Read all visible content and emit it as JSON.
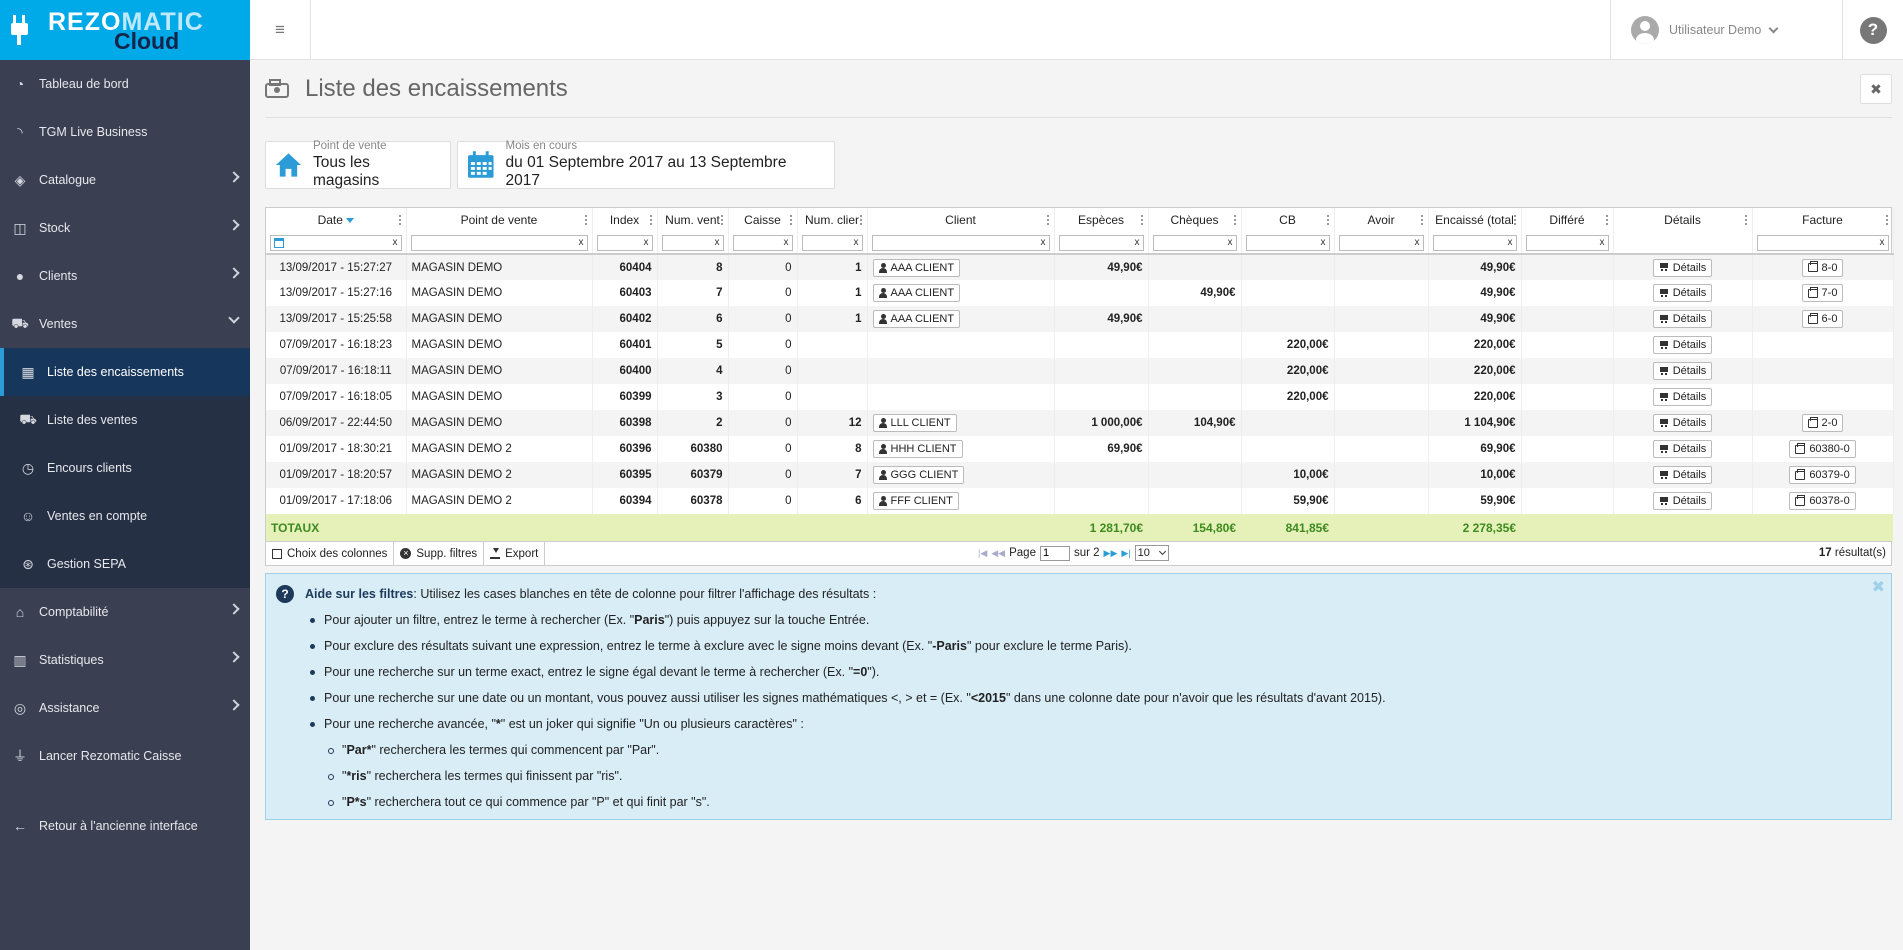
{
  "brand": {
    "name_a": "REZO",
    "name_b": "MATIC",
    "cloud": "Cloud"
  },
  "sidebar": {
    "items": [
      {
        "label": "Tableau de bord",
        "icon": "dashboard-icon"
      },
      {
        "label": "TGM Live Business",
        "icon": "rss-icon"
      },
      {
        "label": "Catalogue",
        "icon": "tags-icon"
      },
      {
        "label": "Stock",
        "icon": "cubes-icon"
      },
      {
        "label": "Clients",
        "icon": "users-icon"
      },
      {
        "label": "Ventes",
        "icon": "cart-icon"
      }
    ],
    "sub_items": [
      {
        "label": "Liste des encaissements",
        "icon": "cash-register-icon"
      },
      {
        "label": "Liste des ventes",
        "icon": "cart-icon"
      },
      {
        "label": "Encours clients",
        "icon": "clock-icon"
      },
      {
        "label": "Ventes en compte",
        "icon": "user-money-icon"
      },
      {
        "label": "Gestion SEPA",
        "icon": "sepa-icon"
      }
    ],
    "bottom_items": [
      {
        "label": "Comptabilité",
        "icon": "bank-icon"
      },
      {
        "label": "Statistiques",
        "icon": "bar-chart-icon"
      },
      {
        "label": "Assistance",
        "icon": "lifebuoy-icon"
      },
      {
        "label": "Lancer Rezomatic Caisse",
        "icon": "plug-icon"
      }
    ],
    "back_label": "Retour à l'ancienne interface"
  },
  "topbar": {
    "user_name": "Utilisateur Demo",
    "help_symbol": "?",
    "menu_symbol": "≡"
  },
  "page": {
    "title": "Liste des encaissements",
    "close_symbol": "✖"
  },
  "filters": {
    "store": {
      "label": "Point de vente",
      "value": "Tous les magasins"
    },
    "period": {
      "label": "Mois en cours",
      "value": "du 01 Septembre 2017 au 13 Septembre 2017"
    }
  },
  "table": {
    "columns": [
      "Date",
      "Point de vente",
      "Index",
      "Num. vent",
      "Caisse",
      "Num. clier",
      "Client",
      "Espèces",
      "Chèques",
      "CB",
      "Avoir",
      "Encaissé (total",
      "Différé",
      "Détails",
      "Facture"
    ],
    "filter_clear": "x",
    "details_label": "Détails",
    "rows": [
      {
        "date": "13/09/2017 - 15:27:27",
        "store": "MAGASIN DEMO",
        "index": "60404",
        "sale": "8",
        "caisse": "0",
        "client_num": "1",
        "client": "AAA CLIENT",
        "especes": "49,90€",
        "cheques": "",
        "cb": "",
        "avoir": "",
        "total": "49,90€",
        "differe": "",
        "facture": "8-0"
      },
      {
        "date": "13/09/2017 - 15:27:16",
        "store": "MAGASIN DEMO",
        "index": "60403",
        "sale": "7",
        "caisse": "0",
        "client_num": "1",
        "client": "AAA CLIENT",
        "especes": "",
        "cheques": "49,90€",
        "cb": "",
        "avoir": "",
        "total": "49,90€",
        "differe": "",
        "facture": "7-0"
      },
      {
        "date": "13/09/2017 - 15:25:58",
        "store": "MAGASIN DEMO",
        "index": "60402",
        "sale": "6",
        "caisse": "0",
        "client_num": "1",
        "client": "AAA CLIENT",
        "especes": "49,90€",
        "cheques": "",
        "cb": "",
        "avoir": "",
        "total": "49,90€",
        "differe": "",
        "facture": "6-0"
      },
      {
        "date": "07/09/2017 - 16:18:23",
        "store": "MAGASIN DEMO",
        "index": "60401",
        "sale": "5",
        "caisse": "0",
        "client_num": "",
        "client": "",
        "especes": "",
        "cheques": "",
        "cb": "220,00€",
        "avoir": "",
        "total": "220,00€",
        "differe": "",
        "facture": ""
      },
      {
        "date": "07/09/2017 - 16:18:11",
        "store": "MAGASIN DEMO",
        "index": "60400",
        "sale": "4",
        "caisse": "0",
        "client_num": "",
        "client": "",
        "especes": "",
        "cheques": "",
        "cb": "220,00€",
        "avoir": "",
        "total": "220,00€",
        "differe": "",
        "facture": ""
      },
      {
        "date": "07/09/2017 - 16:18:05",
        "store": "MAGASIN DEMO",
        "index": "60399",
        "sale": "3",
        "caisse": "0",
        "client_num": "",
        "client": "",
        "especes": "",
        "cheques": "",
        "cb": "220,00€",
        "avoir": "",
        "total": "220,00€",
        "differe": "",
        "facture": ""
      },
      {
        "date": "06/09/2017 - 22:44:50",
        "store": "MAGASIN DEMO",
        "index": "60398",
        "sale": "2",
        "caisse": "0",
        "client_num": "12",
        "client": "LLL CLIENT",
        "especes": "1 000,00€",
        "cheques": "104,90€",
        "cb": "",
        "avoir": "",
        "total": "1 104,90€",
        "differe": "",
        "facture": "2-0"
      },
      {
        "date": "01/09/2017 - 18:30:21",
        "store": "MAGASIN DEMO 2",
        "index": "60396",
        "sale": "60380",
        "caisse": "0",
        "client_num": "8",
        "client": "HHH CLIENT",
        "especes": "69,90€",
        "cheques": "",
        "cb": "",
        "avoir": "",
        "total": "69,90€",
        "differe": "",
        "facture": "60380-0"
      },
      {
        "date": "01/09/2017 - 18:20:57",
        "store": "MAGASIN DEMO 2",
        "index": "60395",
        "sale": "60379",
        "caisse": "0",
        "client_num": "7",
        "client": "GGG CLIENT",
        "especes": "",
        "cheques": "",
        "cb": "10,00€",
        "avoir": "",
        "total": "10,00€",
        "differe": "",
        "facture": "60379-0"
      },
      {
        "date": "01/09/2017 - 17:18:06",
        "store": "MAGASIN DEMO 2",
        "index": "60394",
        "sale": "60378",
        "caisse": "0",
        "client_num": "6",
        "client": "FFF CLIENT",
        "especes": "",
        "cheques": "",
        "cb": "59,90€",
        "avoir": "",
        "total": "59,90€",
        "differe": "",
        "facture": "60378-0"
      }
    ],
    "totals": {
      "label": "TOTAUX",
      "especes": "1 281,70€",
      "cheques": "154,80€",
      "cb": "841,85€",
      "total": "2 278,35€"
    }
  },
  "pager": {
    "columns_btn": "Choix des colonnes",
    "clear_btn": "Supp. filtres",
    "export_btn": "Export",
    "page_label": "Page",
    "page_value": "1",
    "of_label": "sur 2",
    "page_size": "10",
    "results_count": "17",
    "results_label": "résultat(s)"
  },
  "help": {
    "title": "Aide sur les filtres",
    "intro": " : Utilisez les cases blanches en tête de colonne pour filtrer l'affichage des résultats :",
    "items": [
      {
        "a": "Pour ajouter un filtre, entrez le terme à rechercher (Ex. \"",
        "b": "Paris",
        "c": "\") puis appuyez sur la touche Entrée."
      },
      {
        "a": "Pour exclure des résultats suivant une expression, entrez le terme à exclure avec le signe moins devant (Ex. \"",
        "b": "-Paris",
        "c": "\" pour exclure le terme Paris)."
      },
      {
        "a": "Pour une recherche sur un terme exact, entrez le signe égal devant le terme à rechercher (Ex. \"",
        "b": "=0",
        "c": "\")."
      },
      {
        "a": "Pour une recherche sur une date ou un montant, vous pouvez aussi utiliser les signes mathématiques <, > et = (Ex. \"",
        "b": "<2015",
        "c": "\" dans une colonne date pour n'avoir que les résultats d'avant 2015)."
      },
      {
        "a": "Pour une recherche avancée, \"",
        "b": "*",
        "c": "\" est un joker qui signifie \"Un ou plusieurs caractères\" :"
      }
    ],
    "sub_items": [
      {
        "a": "\"",
        "b": "Par*",
        "c": "\" recherchera les termes qui commencent par \"Par\"."
      },
      {
        "a": "\"",
        "b": "*ris",
        "c": "\" recherchera les termes qui finissent par \"ris\"."
      },
      {
        "a": "\"",
        "b": "P*s",
        "c": "\" recherchera tout ce qui commence par \"P\" et qui finit par \"s\"."
      }
    ]
  }
}
